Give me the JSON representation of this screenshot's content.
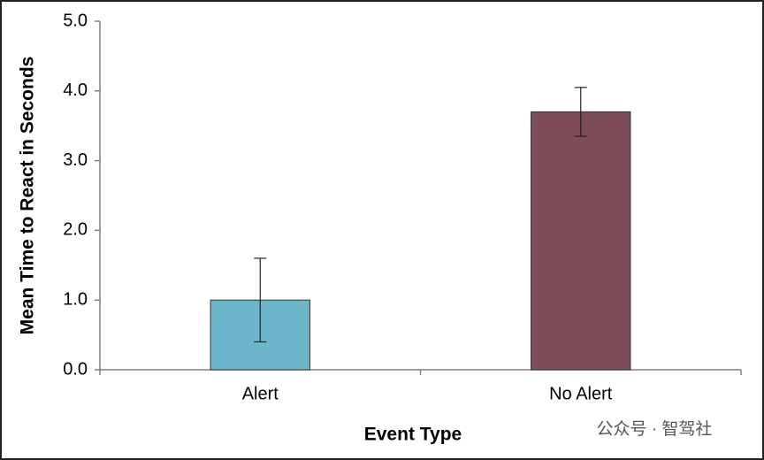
{
  "chart_data": {
    "type": "bar",
    "x_label": "Event Type",
    "y_label": "Mean Time to React in Seconds",
    "categories": [
      "Alert",
      "No Alert"
    ],
    "values": [
      1.0,
      3.7
    ],
    "errors": [
      0.6,
      0.35
    ],
    "colors": [
      "#6cb6cc",
      "#7f4c59"
    ],
    "ylim": [
      0,
      5
    ],
    "yticks": [
      {
        "value": 0,
        "label": "0.0"
      },
      {
        "value": 1,
        "label": "1.0"
      },
      {
        "value": 2,
        "label": "2.0"
      },
      {
        "value": 3,
        "label": "3.0"
      },
      {
        "value": 4,
        "label": "4.0"
      },
      {
        "value": 5,
        "label": "5.0"
      }
    ],
    "grid": false,
    "watermark": "公众号 · 智驾社"
  }
}
